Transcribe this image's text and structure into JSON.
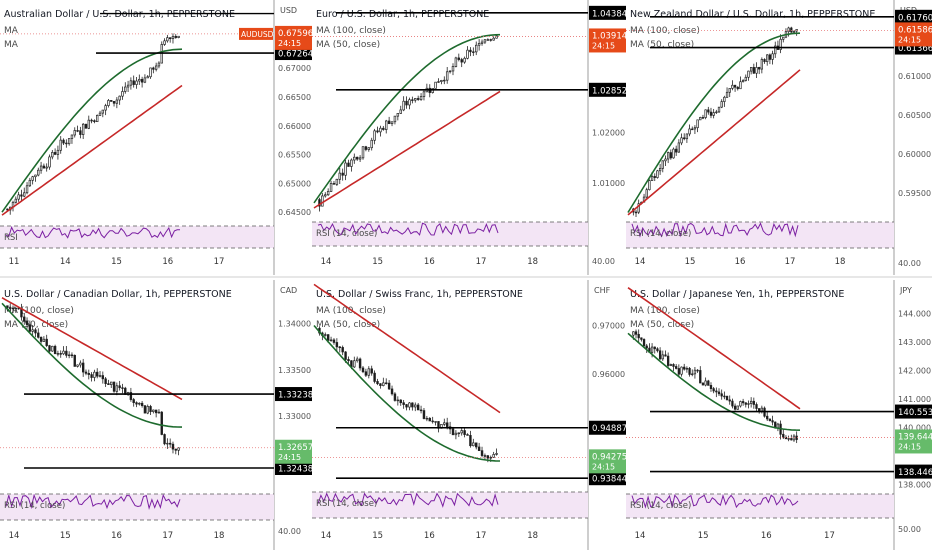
{
  "chart_data": [
    {
      "type": "candlestick",
      "title": "Australian Dollar / U.S. Dollar, 1h, PEPPERSTONE",
      "currency": "USD",
      "ma_labels": [
        "MA",
        "MA"
      ],
      "rsi_label": "RSI",
      "rsi_tick": "",
      "y_ticks": [
        0.67,
        0.665,
        0.66,
        0.655,
        0.65,
        0.645
      ],
      "x_ticks": [
        "11",
        "14",
        "15",
        "16",
        "17"
      ],
      "ylim": [
        0.644,
        0.6815
      ],
      "symbol_label": "AUDUSD",
      "current_price": 0.67596,
      "countdown": "24:15",
      "levels": [
        0.67264
      ],
      "top_level": 0.6795,
      "ma_long_start": 0.6445,
      "ma_long_end": 0.667,
      "ma_short_start": 0.645,
      "ma_short_end": 0.6733,
      "colors": {
        "ma_short": "#1e6b2e",
        "ma_long": "#c62828",
        "level": "#000000"
      }
    },
    {
      "type": "candlestick",
      "title": "Euro / U.S. Dollar, 1h, PEPPERSTONE",
      "currency": "USD",
      "ma_labels": [
        "MA (100, close)",
        "MA (50, close)"
      ],
      "rsi_label": "RSI (14, close)",
      "rsi_tick": "40.00",
      "y_ticks": [
        1.02,
        1.01
      ],
      "x_ticks": [
        "14",
        "15",
        "16",
        "17",
        "18"
      ],
      "ylim": [
        1.003,
        1.046
      ],
      "symbol_label": "",
      "current_price": 1.03914,
      "countdown": "24:15",
      "levels": [
        1.04384,
        1.02852
      ],
      "top_level": null,
      "ma_long_start": 1.005,
      "ma_long_end": 1.0282,
      "ma_short_start": 1.006,
      "ma_short_end": 1.0395,
      "colors": {
        "ma_short": "#1e6b2e",
        "ma_long": "#c62828",
        "level": "#000000"
      }
    },
    {
      "type": "candlestick",
      "title": "New Zealand Dollar / U.S. Dollar, 1h, PEPPERSTONE",
      "currency": "USD",
      "ma_labels": [
        "MA (100, close)",
        "MA (50, close)"
      ],
      "rsi_label": "RSI (14, close)",
      "rsi_tick": "40.00",
      "y_ticks": [
        0.61,
        0.605,
        0.6,
        0.595
      ],
      "x_ticks": [
        "14",
        "15",
        "16",
        "17",
        "18"
      ],
      "ylim": [
        0.5918,
        0.6195
      ],
      "symbol_label": "",
      "current_price": 0.61586,
      "countdown": "24:15",
      "levels": [
        0.6176,
        0.61366
      ],
      "top_level": null,
      "ma_long_start": 0.5922,
      "ma_long_end": 0.6108,
      "ma_short_start": 0.5925,
      "ma_short_end": 0.6155,
      "colors": {
        "ma_short": "#1e6b2e",
        "ma_long": "#c62828",
        "level": "#000000"
      }
    },
    {
      "type": "candlestick",
      "title": "U.S. Dollar / Canadian Dollar, 1h, PEPPERSTONE",
      "currency": "CAD",
      "ma_labels": [
        "MA (100, close)",
        "MA (50, close)"
      ],
      "rsi_label": "RSI (14, close)",
      "rsi_tick": "40.00",
      "y_ticks": [
        1.34,
        1.335,
        1.33
      ],
      "x_ticks": [
        "14",
        "15",
        "16",
        "17",
        "18"
      ],
      "ylim": [
        1.322,
        1.3445
      ],
      "symbol_label": "",
      "current_price": 1.32657,
      "countdown": "24:15",
      "levels": [
        1.33238,
        1.32438
      ],
      "top_level": null,
      "ma_long_start": 1.3428,
      "ma_long_end": 1.3318,
      "ma_short_start": 1.3422,
      "ma_short_end": 1.3288,
      "colors": {
        "ma_short": "#1e6b2e",
        "ma_long": "#c62828",
        "level": "#000000"
      }
    },
    {
      "type": "candlestick",
      "title": "U.S. Dollar / Swiss Franc, 1h, PEPPERSTONE",
      "currency": "CHF",
      "ma_labels": [
        "MA (100, close)",
        "MA (50, close)"
      ],
      "rsi_label": "RSI (14, close)",
      "rsi_tick": "",
      "y_ticks": [
        0.97,
        0.96
      ],
      "x_ticks": [
        "14",
        "15",
        "16",
        "17",
        "18"
      ],
      "ylim": [
        0.936,
        0.979
      ],
      "symbol_label": "",
      "current_price": 0.94275,
      "countdown": "24:15",
      "levels": [
        0.94887,
        0.93844
      ],
      "top_level": null,
      "ma_long_start": 0.9785,
      "ma_long_end": 0.952,
      "ma_short_start": 0.97,
      "ma_short_end": 0.942,
      "colors": {
        "ma_short": "#1e6b2e",
        "ma_long": "#c62828",
        "level": "#000000"
      }
    },
    {
      "type": "candlestick",
      "title": "U.S. Dollar / Japanese Yen, 1h, PEPPERSTONE",
      "currency": "JPY",
      "ma_labels": [
        "MA (100, close)",
        "MA (50, close)"
      ],
      "rsi_label": "RSI (14, close)",
      "rsi_tick": "50.00",
      "y_ticks": [
        144.0,
        143.0,
        142.0,
        141.0,
        140.0,
        138.0
      ],
      "x_ticks": [
        "14",
        "15",
        "16",
        "17"
      ],
      "ylim": [
        137.8,
        145.1
      ],
      "symbol_label": "",
      "current_price": 139.644,
      "countdown": "24:15",
      "levels": [
        140.553,
        138.446
      ],
      "top_level": null,
      "ma_long_start": 144.9,
      "ma_long_end": 140.65,
      "ma_short_start": 143.3,
      "ma_short_end": 139.9,
      "colors": {
        "ma_short": "#1e6b2e",
        "ma_long": "#c62828",
        "level": "#000000"
      }
    }
  ]
}
